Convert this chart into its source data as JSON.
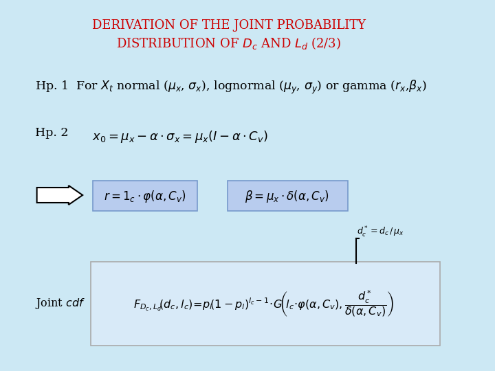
{
  "background_color": "#cce8f4",
  "title_color": "#cc0000",
  "title_fontsize": 13,
  "text_color": "#000000",
  "figsize": [
    7.2,
    5.4
  ],
  "dpi": 100,
  "box1_color": "#b8ccee",
  "box2_color": "#b8ccee",
  "formula_box_color": "#d8eaf8",
  "formula_box_edge": "#aaaaaa"
}
